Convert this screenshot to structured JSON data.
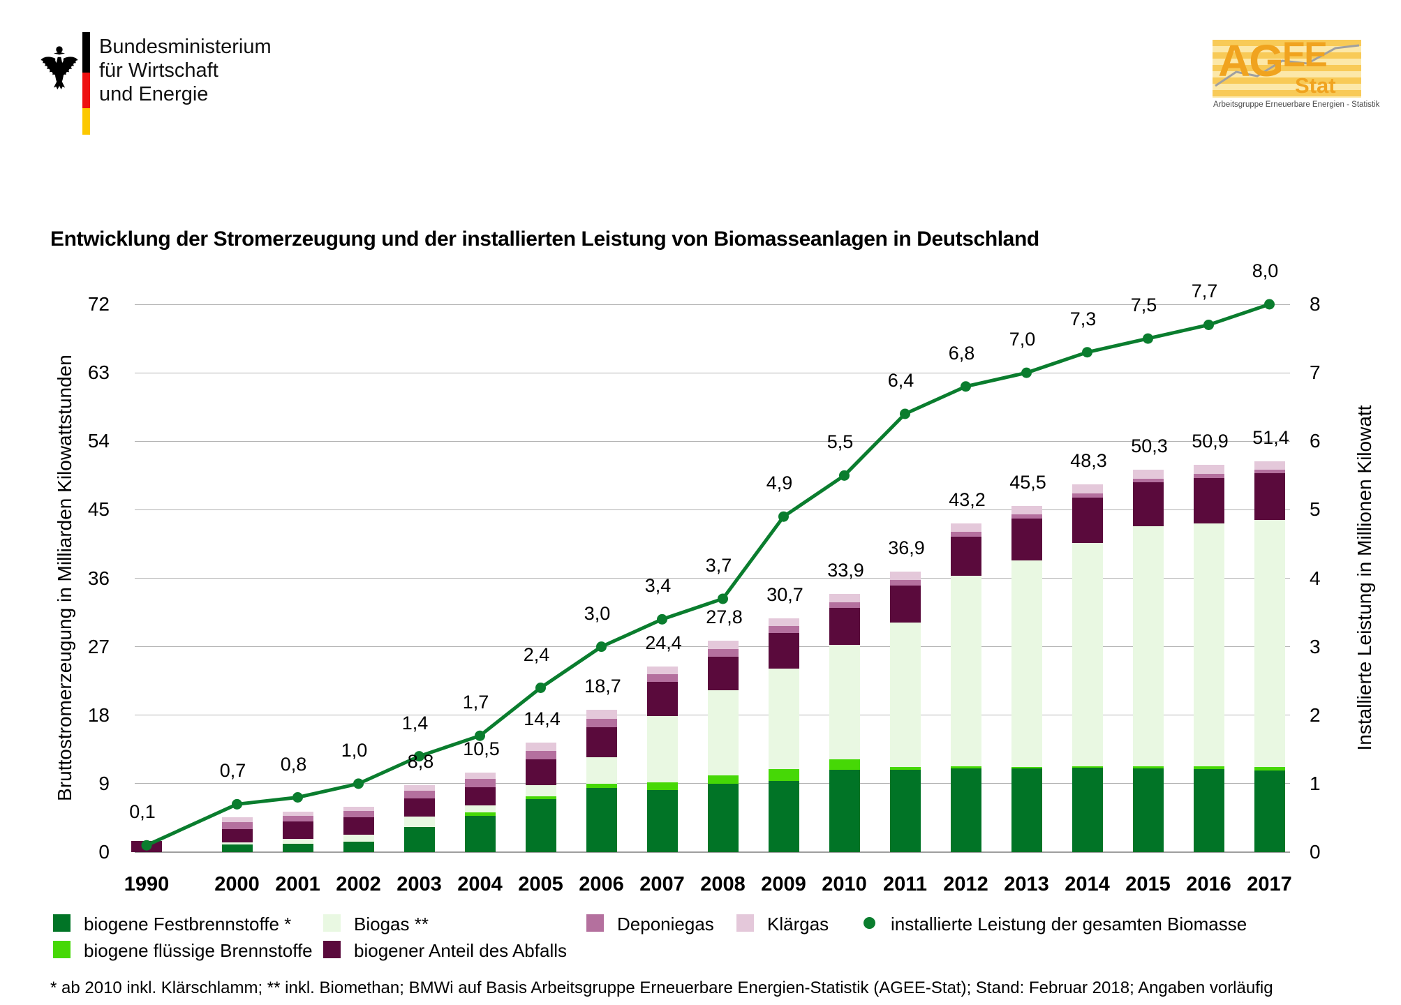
{
  "header": {
    "ministry": {
      "line1": "Bundesministerium",
      "line2": "für Wirtschaft",
      "line3": "und Energie"
    },
    "agee": {
      "word_big": "AG",
      "word_mid": "EE",
      "sub": "Stat",
      "caption": "Arbeitsgruppe Erneuerbare Energien - Statistik"
    }
  },
  "title": "Entwicklung der Stromerzeugung und der installierten Leistung von Biomasseanlagen in Deutschland",
  "chart_data": {
    "type": "stacked-bar+line",
    "categories": [
      "1990",
      "2000",
      "2001",
      "2002",
      "2003",
      "2004",
      "2005",
      "2006",
      "2007",
      "2008",
      "2009",
      "2010",
      "2011",
      "2012",
      "2013",
      "2014",
      "2015",
      "2016",
      "2017"
    ],
    "left_axis": {
      "title": "Bruttostromerzeugung in Milliarden Kilowattstunden",
      "ticks": [
        0,
        9,
        18,
        27,
        36,
        45,
        54,
        63,
        72
      ],
      "range": [
        0,
        72
      ]
    },
    "right_axis": {
      "title": "Installierte Leistung in Millionen Kilowatt",
      "ticks": [
        0,
        1,
        2,
        3,
        4,
        5,
        6,
        7,
        8
      ],
      "range": [
        0,
        8
      ]
    },
    "grid": true,
    "series": [
      {
        "key": "fest",
        "name": "biogene Festbrennstoffe *",
        "color": "#017426",
        "values": [
          0,
          1.0,
          1.1,
          1.4,
          3.3,
          4.8,
          7.0,
          8.4,
          8.2,
          9.0,
          9.4,
          10.8,
          10.8,
          11.0,
          11.0,
          11.1,
          11.0,
          10.9,
          10.7
        ]
      },
      {
        "key": "fluessig",
        "name": "biogene flüssige Brennstoffe",
        "color": "#46d806",
        "values": [
          0,
          0,
          0,
          0,
          0,
          0.4,
          0.3,
          0.6,
          1.0,
          1.1,
          1.5,
          1.4,
          0.4,
          0.3,
          0.2,
          0.2,
          0.3,
          0.4,
          0.5
        ]
      },
      {
        "key": "biogas",
        "name": "Biogas **",
        "color": "#e9f8e2",
        "values": [
          0,
          0.25,
          0.65,
          0.85,
          1.4,
          0.9,
          1.5,
          3.5,
          8.7,
          11.2,
          13.2,
          15.0,
          19.0,
          25.0,
          27.1,
          29.3,
          31.5,
          31.9,
          32.5
        ]
      },
      {
        "key": "abfall",
        "name": "biogener Anteil des Abfalls",
        "color": "#5a0a3c",
        "values": [
          1.5,
          1.8,
          2.25,
          2.35,
          2.4,
          2.4,
          3.4,
          3.9,
          4.5,
          4.4,
          4.7,
          4.9,
          4.8,
          5.2,
          5.5,
          6.0,
          5.8,
          6.0,
          6.1
        ]
      },
      {
        "key": "deponie",
        "name": "Deponiegas",
        "color": "#b4709e",
        "values": [
          0,
          0.85,
          0.8,
          0.8,
          1.0,
          1.1,
          1.1,
          1.1,
          1.0,
          1.0,
          0.9,
          0.7,
          0.8,
          0.6,
          0.6,
          0.5,
          0.5,
          0.5,
          0.5
        ]
      },
      {
        "key": "klaer",
        "name": "Klärgas",
        "color": "#e4c8da",
        "values": [
          0,
          0.7,
          0.55,
          0.6,
          0.7,
          0.9,
          1.1,
          1.2,
          1.0,
          1.1,
          1.0,
          1.1,
          1.1,
          1.1,
          1.1,
          1.2,
          1.2,
          1.2,
          1.1
        ]
      }
    ],
    "bar_total_labels": [
      "",
      "",
      "",
      "",
      "8,8",
      "10,5",
      "14,4",
      "18,7",
      "24,4",
      "27,8",
      "30,7",
      "33,9",
      "36,9",
      "43,2",
      "45,5",
      "48,3",
      "50,3",
      "50,9",
      "51,4"
    ],
    "line_series": {
      "key": "line",
      "name": "installierte Leistung der gesamten Biomasse",
      "color": "#0a7d2e",
      "values": [
        0.1,
        0.7,
        0.8,
        1.0,
        1.4,
        1.7,
        2.4,
        3.0,
        3.4,
        3.7,
        4.9,
        5.5,
        6.4,
        6.8,
        7.0,
        7.3,
        7.5,
        7.7,
        8.0
      ],
      "labels": [
        "0,1",
        "0,7",
        "0,8",
        "1,0",
        "1,4",
        "1,7",
        "2,4",
        "3,0",
        "3,4",
        "3,7",
        "4,9",
        "5,5",
        "6,4",
        "6,8",
        "7,0",
        "7,3",
        "7,5",
        "7,7",
        "8,0"
      ]
    },
    "colors": {
      "grid": "#b3b3b3",
      "axis": "#9e9e9e"
    }
  },
  "legend": {
    "rows": [
      [
        {
          "key": "fest"
        },
        {
          "key": "biogas"
        },
        {
          "key": "deponie"
        },
        {
          "key": "klaer"
        },
        {
          "key": "line"
        }
      ],
      [
        {
          "key": "fluessig"
        },
        {
          "key": "abfall"
        }
      ]
    ]
  },
  "footnote": "* ab 2010 inkl. Klärschlamm; ** inkl. Biomethan; BMWi auf Basis Arbeitsgruppe Erneuerbare Energien-Statistik (AGEE-Stat); Stand: Februar 2018; Angaben vorläufig"
}
